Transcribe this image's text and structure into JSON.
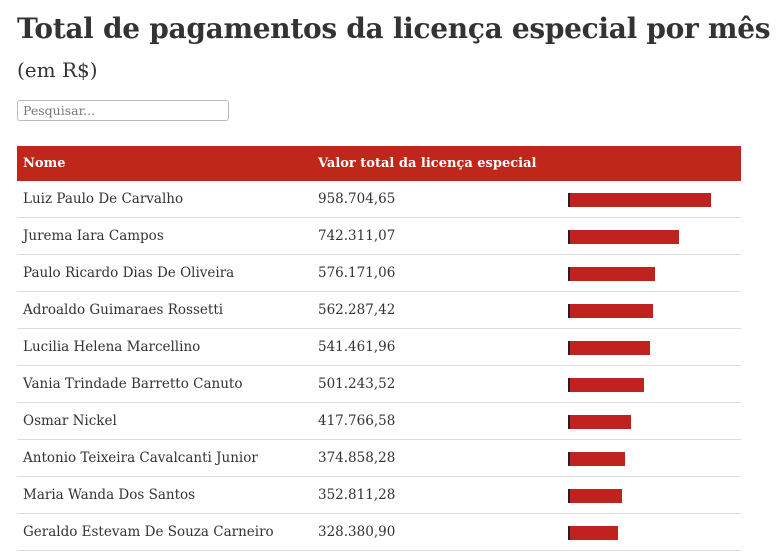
{
  "title": "Total de pagamentos da licença especial por mês",
  "subtitle": "(em R$)",
  "search": {
    "placeholder": "Pesquisar..."
  },
  "colors": {
    "accent": "#c0271b",
    "bar": "#c0221f"
  },
  "chart_data": {
    "type": "table",
    "columns": [
      "Nome",
      "Valor total da licença especial",
      ""
    ],
    "rows": [
      {
        "name": "Luiz Paulo De Carvalho",
        "value_label": "958.704,65",
        "value": 958704.65
      },
      {
        "name": "Jurema Iara Campos",
        "value_label": "742.311,07",
        "value": 742311.07
      },
      {
        "name": "Paulo Ricardo Dias De Oliveira",
        "value_label": "576.171,06",
        "value": 576171.06
      },
      {
        "name": "Adroaldo Guimaraes Rossetti",
        "value_label": "562.287,42",
        "value": 562287.42
      },
      {
        "name": "Lucilia Helena Marcellino",
        "value_label": "541.461,96",
        "value": 541461.96
      },
      {
        "name": "Vania Trindade Barretto Canuto",
        "value_label": "501.243,52",
        "value": 501243.52
      },
      {
        "name": "Osmar Nickel",
        "value_label": "417.766,58",
        "value": 417766.58
      },
      {
        "name": "Antonio Teixeira Cavalcanti Junior",
        "value_label": "374.858,28",
        "value": 374858.28
      },
      {
        "name": "Maria Wanda Dos Santos",
        "value_label": "352.811,28",
        "value": 352811.28
      },
      {
        "name": "Geraldo Estevam De Souza Carneiro",
        "value_label": "328.380,90",
        "value": 328380.9
      }
    ]
  }
}
